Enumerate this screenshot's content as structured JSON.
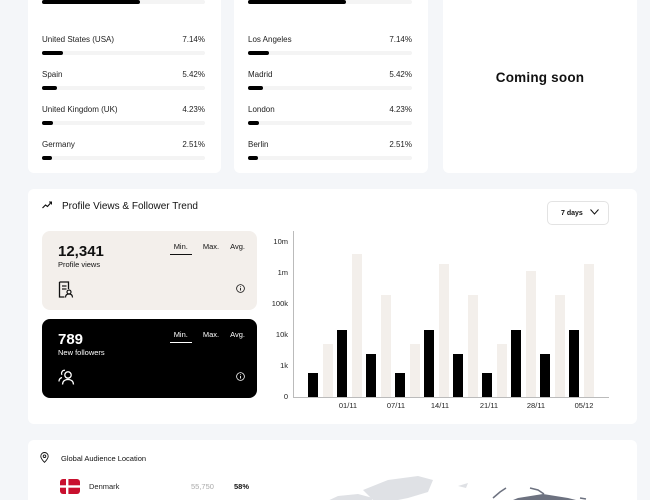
{
  "countries": {
    "items": [
      {
        "name": "",
        "pct": "",
        "fill": 60
      },
      {
        "name": "United States (USA)",
        "pct": "7.14%",
        "fill": 13
      },
      {
        "name": "Spain",
        "pct": "5.42%",
        "fill": 9
      },
      {
        "name": "United Kingdom (UK)",
        "pct": "4.23%",
        "fill": 7
      },
      {
        "name": "Germany",
        "pct": "2.51%",
        "fill": 6
      }
    ]
  },
  "cities": {
    "items": [
      {
        "name": "",
        "pct": "",
        "fill": 60
      },
      {
        "name": "Los Angeles",
        "pct": "7.14%",
        "fill": 13
      },
      {
        "name": "Madrid",
        "pct": "5.42%",
        "fill": 9
      },
      {
        "name": "London",
        "pct": "4.23%",
        "fill": 7
      },
      {
        "name": "Berlin",
        "pct": "2.51%",
        "fill": 6
      }
    ]
  },
  "coming_soon": {
    "label": "Coming soon"
  },
  "trend": {
    "title": "Profile Views & Follower Trend",
    "range": {
      "selected": "7 days"
    },
    "metrics": [
      {
        "value": "12,341",
        "label": "Profile views",
        "tabs": [
          "Min.",
          "Max.",
          "Avg."
        ],
        "active_tab": "Min."
      },
      {
        "value": "789",
        "label": "New followers",
        "tabs": [
          "Min.",
          "Max.",
          "Avg."
        ],
        "active_tab": "Min."
      }
    ]
  },
  "chart_data": {
    "type": "bar",
    "title": "",
    "xlabel": "",
    "ylabel": "",
    "scale": "log",
    "y_ticks": [
      "0",
      "1k",
      "10k",
      "100k",
      "1m",
      "10m"
    ],
    "categories": [
      "01/11",
      "07/11",
      "14/11",
      "21/11",
      "28/11",
      "05/12"
    ],
    "grid": false,
    "legend": null,
    "bars": [
      {
        "series": "followers",
        "value": 600
      },
      {
        "series": "views",
        "value": 5000
      },
      {
        "series": "followers",
        "value": 15000
      },
      {
        "series": "views",
        "value": 4000000
      },
      {
        "series": "followers",
        "value": 2500
      },
      {
        "series": "views",
        "value": 200000
      },
      {
        "series": "followers",
        "value": 600
      },
      {
        "series": "views",
        "value": 5000
      },
      {
        "series": "followers",
        "value": 15000
      },
      {
        "series": "views",
        "value": 2000000
      },
      {
        "series": "followers",
        "value": 2500
      },
      {
        "series": "views",
        "value": 200000
      },
      {
        "series": "followers",
        "value": 600
      },
      {
        "series": "views",
        "value": 5000
      },
      {
        "series": "followers",
        "value": 15000
      },
      {
        "series": "views",
        "value": 1200000
      },
      {
        "series": "followers",
        "value": 2500
      },
      {
        "series": "views",
        "value": 200000
      },
      {
        "series": "followers",
        "value": 15000
      },
      {
        "series": "views",
        "value": 2000000
      }
    ],
    "colors": {
      "followers": "#000000",
      "views": "#f3efeb"
    }
  },
  "location": {
    "title": "Global Audience Location",
    "rows": [
      {
        "country": "Denmark",
        "count": "55,750",
        "pct": "58%"
      }
    ]
  }
}
